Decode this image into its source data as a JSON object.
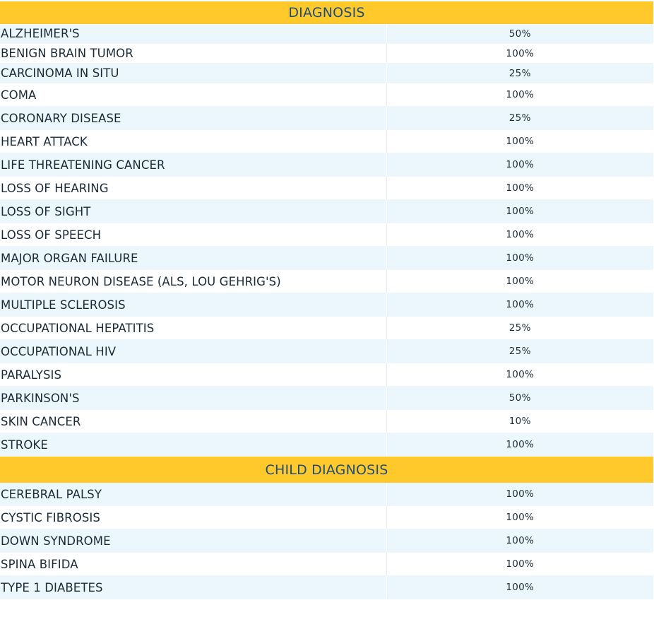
{
  "sections": [
    {
      "title": "DIAGNOSIS",
      "rows": [
        {
          "name": "ALZHEIMER'S",
          "pct": "50%"
        },
        {
          "name": "BENIGN BRAIN TUMOR",
          "pct": "100%"
        },
        {
          "name": "CARCINOMA IN SITU",
          "pct": "25%"
        },
        {
          "name": "COMA",
          "pct": "100%"
        },
        {
          "name": "CORONARY DISEASE",
          "pct": "25%"
        },
        {
          "name": "HEART ATTACK",
          "pct": "100%"
        },
        {
          "name": "LIFE THREATENING CANCER",
          "pct": "100%"
        },
        {
          "name": "LOSS OF HEARING",
          "pct": "100%"
        },
        {
          "name": "LOSS OF SIGHT",
          "pct": "100%"
        },
        {
          "name": "LOSS OF SPEECH",
          "pct": "100%"
        },
        {
          "name": "MAJOR ORGAN FAILURE",
          "pct": "100%"
        },
        {
          "name": "MOTOR NEURON DISEASE (ALS, LOU GEHRIG'S)",
          "pct": "100%"
        },
        {
          "name": "MULTIPLE SCLEROSIS",
          "pct": "100%"
        },
        {
          "name": "OCCUPATIONAL HEPATITIS",
          "pct": "25%"
        },
        {
          "name": "OCCUPATIONAL HIV",
          "pct": "25%"
        },
        {
          "name": "PARALYSIS",
          "pct": "100%"
        },
        {
          "name": "PARKINSON'S",
          "pct": "50%"
        },
        {
          "name": "SKIN CANCER",
          "pct": "10%"
        },
        {
          "name": "STROKE",
          "pct": "100%"
        }
      ]
    },
    {
      "title": "CHILD DIAGNOSIS",
      "rows": [
        {
          "name": "CEREBRAL PALSY",
          "pct": "100%"
        },
        {
          "name": "CYSTIC FIBROSIS",
          "pct": "100%"
        },
        {
          "name": "DOWN SYNDROME",
          "pct": "100%"
        },
        {
          "name": "SPINA BIFIDA",
          "pct": "100%"
        },
        {
          "name": "TYPE 1 DIABETES",
          "pct": "100%"
        }
      ]
    }
  ]
}
